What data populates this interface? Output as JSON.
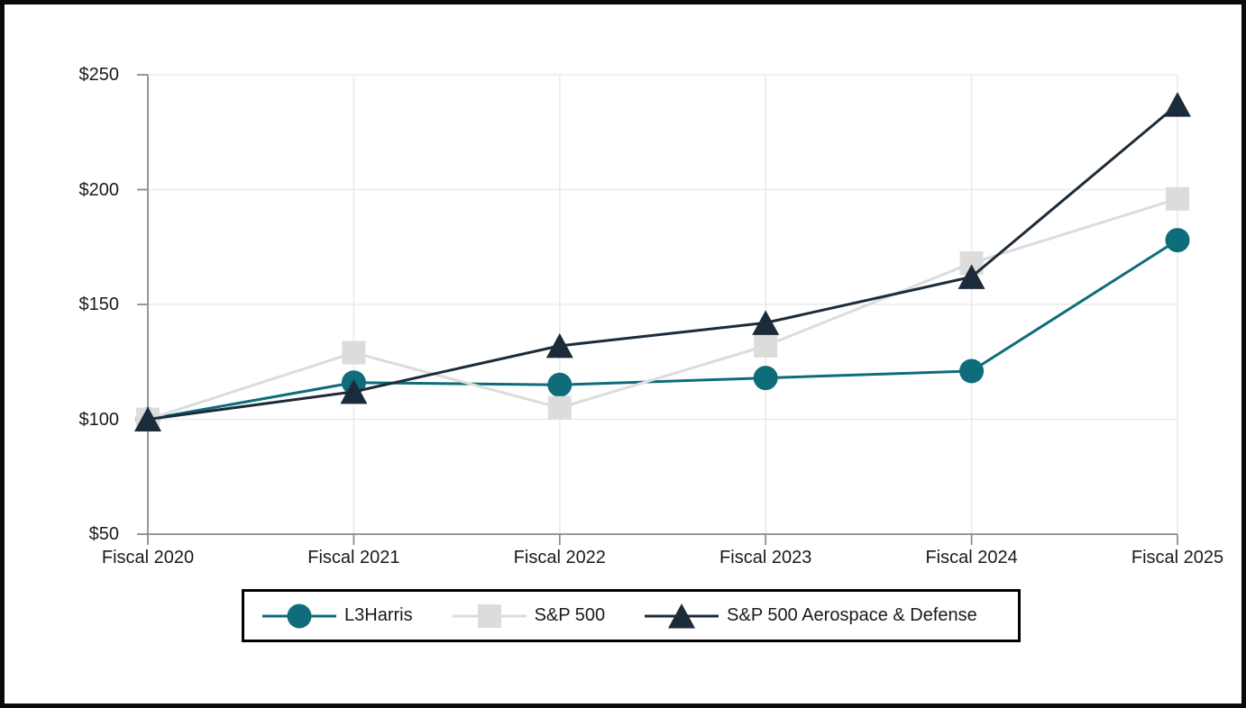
{
  "chart_data": {
    "type": "line",
    "title": "",
    "categories": [
      "Fiscal 2020",
      "Fiscal 2021",
      "Fiscal 2022",
      "Fiscal 2023",
      "Fiscal 2024",
      "Fiscal 2025"
    ],
    "y_tick_labels": [
      "$50",
      "$100",
      "$150",
      "$200",
      "$250"
    ],
    "y_tick_values": [
      50,
      100,
      150,
      200,
      250
    ],
    "ylim": [
      50,
      250
    ],
    "grid": true,
    "legend_position": "bottom",
    "series": [
      {
        "name": "L3Harris",
        "marker": "circle",
        "color": "#0E6C7B",
        "values": [
          100,
          116,
          115,
          118,
          121,
          178
        ]
      },
      {
        "name": "S&P 500",
        "marker": "square",
        "color": "#DCDCDC",
        "values": [
          100,
          129,
          105,
          132,
          168,
          196
        ]
      },
      {
        "name": "S&P 500 Aerospace & Defense",
        "marker": "triangle",
        "color": "#1C2B3A",
        "values": [
          100,
          112,
          132,
          142,
          162,
          237
        ]
      }
    ],
    "colors": {
      "axis": "#8C8C8C",
      "grid": "#EBEBEB",
      "text": "#1A1A1A",
      "legend_border": "#000000",
      "frame": "#0A0A0A",
      "background": "#FFFFFF"
    }
  }
}
